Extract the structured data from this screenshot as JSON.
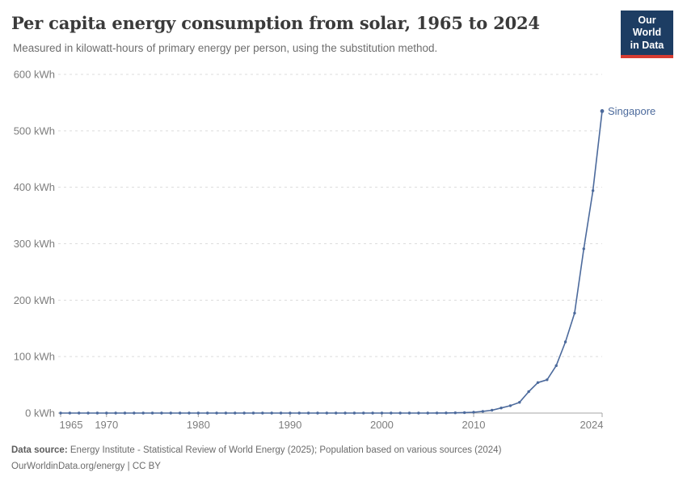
{
  "header": {
    "title": "Per capita energy consumption from solar, 1965 to 2024",
    "subtitle": "Measured in kilowatt-hours of primary energy per person, using the substitution method.",
    "logo": {
      "line1": "Our World",
      "line2": "in Data",
      "bg_color": "#1d3d63",
      "accent_color": "#d73c32"
    }
  },
  "chart_data": {
    "type": "line",
    "title": "Per capita energy consumption from solar, 1965 to 2024",
    "xlabel": "",
    "ylabel": "kWh",
    "xlim": [
      1965,
      2024
    ],
    "ylim": [
      0,
      600
    ],
    "yticks": [
      0,
      100,
      200,
      300,
      400,
      500,
      600
    ],
    "ytick_suffix": " kWh",
    "xticks": [
      1965,
      1970,
      1980,
      1990,
      2000,
      2010,
      2024
    ],
    "grid": "horizontal-dashed",
    "legend_position": "end-of-line-label",
    "x": [
      1965,
      1966,
      1967,
      1968,
      1969,
      1970,
      1971,
      1972,
      1973,
      1974,
      1975,
      1976,
      1977,
      1978,
      1979,
      1980,
      1981,
      1982,
      1983,
      1984,
      1985,
      1986,
      1987,
      1988,
      1989,
      1990,
      1991,
      1992,
      1993,
      1994,
      1995,
      1996,
      1997,
      1998,
      1999,
      2000,
      2001,
      2002,
      2003,
      2004,
      2005,
      2006,
      2007,
      2008,
      2009,
      2010,
      2011,
      2012,
      2013,
      2014,
      2015,
      2016,
      2017,
      2018,
      2019,
      2020,
      2021,
      2022,
      2023,
      2024
    ],
    "series": [
      {
        "name": "Singapore",
        "color": "#4c6a9c",
        "values": [
          0,
          0,
          0,
          0,
          0,
          0,
          0,
          0,
          0,
          0,
          0,
          0,
          0,
          0,
          0,
          0,
          0,
          0,
          0,
          0,
          0,
          0,
          0,
          0,
          0,
          0,
          0,
          0,
          0,
          0,
          0,
          0,
          0,
          0,
          0,
          0,
          0,
          0,
          0,
          0,
          0,
          0.1,
          0.2,
          0.4,
          0.8,
          1.5,
          3,
          5,
          9,
          13,
          19,
          38,
          54,
          59,
          84,
          126,
          177,
          291,
          394,
          535
        ]
      }
    ],
    "colors": {
      "gridline": "#dcdcdc",
      "axis": "#a5a5a5",
      "tick_label": "#7d7d7d"
    }
  },
  "footer": {
    "source_label": "Data source:",
    "source_text": "Energy Institute - Statistical Review of World Energy (2025); Population based on various sources (2024)",
    "link_text": "OurWorldinData.org/energy",
    "separator": "|",
    "license": "CC BY"
  }
}
